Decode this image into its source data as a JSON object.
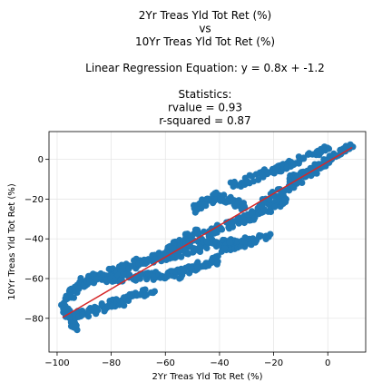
{
  "chart_data": {
    "type": "scatter",
    "title_lines": [
      "2Yr Treas Yld Tot Ret (%)",
      "vs",
      "10Yr Treas Yld Tot Ret (%)",
      "",
      "Linear Regression Equation: y = 0.8x + -1.2",
      "",
      "Statistics:",
      "rvalue = 0.93",
      "r-squared = 0.87"
    ],
    "xlabel": "2Yr Treas Yld Tot Ret (%)",
    "ylabel": "10Yr Treas Yld Tot Ret (%)",
    "xlim": [
      -103,
      14
    ],
    "ylim": [
      -97,
      14
    ],
    "xticks": [
      -100,
      -80,
      -60,
      -40,
      -20,
      0
    ],
    "yticks": [
      -80,
      -60,
      -40,
      -20,
      0
    ],
    "grid": true,
    "point_color": "#1f77b4",
    "line_color": "#d62728",
    "regression": {
      "slope": 0.8,
      "intercept": -1.2,
      "x_range": [
        -98,
        9
      ]
    },
    "segments": [
      {
        "x0": -98,
        "y0": -74,
        "x1": -93,
        "y1": -85,
        "n": 40,
        "spread": 2.5
      },
      {
        "x0": -95,
        "y0": -80,
        "x1": -75,
        "y1": -71,
        "n": 60,
        "spread": 2.8
      },
      {
        "x0": -97,
        "y0": -70,
        "x1": -86,
        "y1": -58,
        "n": 45,
        "spread": 2.5
      },
      {
        "x0": -90,
        "y0": -62,
        "x1": -70,
        "y1": -52,
        "n": 60,
        "spread": 2.8
      },
      {
        "x0": -75,
        "y0": -70,
        "x1": -65,
        "y1": -66,
        "n": 25,
        "spread": 2.2
      },
      {
        "x0": -85,
        "y0": -60,
        "x1": -55,
        "y1": -58,
        "n": 70,
        "spread": 2.5
      },
      {
        "x0": -60,
        "y0": -59,
        "x1": -40,
        "y1": -50,
        "n": 55,
        "spread": 2.5
      },
      {
        "x0": -70,
        "y0": -52,
        "x1": -45,
        "y1": -44,
        "n": 60,
        "spread": 2.5
      },
      {
        "x0": -62,
        "y0": -48,
        "x1": -48,
        "y1": -36,
        "n": 40,
        "spread": 2.3
      },
      {
        "x0": -55,
        "y0": -42,
        "x1": -30,
        "y1": -42,
        "n": 55,
        "spread": 2.5
      },
      {
        "x0": -45,
        "y0": -38,
        "x1": -25,
        "y1": -26,
        "n": 50,
        "spread": 2.5
      },
      {
        "x0": -50,
        "y0": -25,
        "x1": -40,
        "y1": -18,
        "n": 30,
        "spread": 2.5
      },
      {
        "x0": -42,
        "y0": -18,
        "x1": -30,
        "y1": -24,
        "n": 30,
        "spread": 2.3
      },
      {
        "x0": -30,
        "y0": -30,
        "x1": -15,
        "y1": -20,
        "n": 40,
        "spread": 2.5
      },
      {
        "x0": -25,
        "y0": -22,
        "x1": -5,
        "y1": -6,
        "n": 45,
        "spread": 2.3
      },
      {
        "x0": -15,
        "y0": -10,
        "x1": 0,
        "y1": -2,
        "n": 35,
        "spread": 2.0
      },
      {
        "x0": -5,
        "y0": -4,
        "x1": 9,
        "y1": 7,
        "n": 35,
        "spread": 1.8
      },
      {
        "x0": -35,
        "y0": -13,
        "x1": -15,
        "y1": -3,
        "n": 40,
        "spread": 2.2
      },
      {
        "x0": -20,
        "y0": -6,
        "x1": 0,
        "y1": 6,
        "n": 40,
        "spread": 2.0
      },
      {
        "x0": -40,
        "y0": -45,
        "x1": -20,
        "y1": -38,
        "n": 35,
        "spread": 2.5
      }
    ]
  }
}
